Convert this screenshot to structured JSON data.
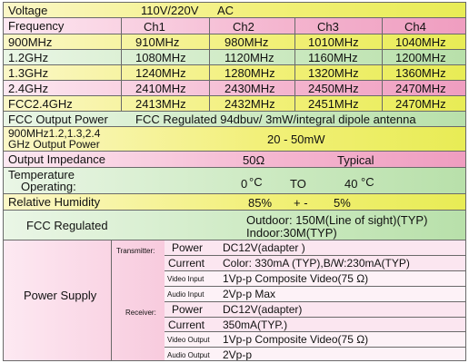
{
  "voltage": {
    "label": "Voltage",
    "value": "110V/220V",
    "value2": "AC"
  },
  "frequency_header": {
    "label": "Frequency",
    "ch": [
      "Ch1",
      "Ch2",
      "Ch3",
      "Ch4"
    ]
  },
  "freq_rows": [
    {
      "label": "900MHz",
      "vals": [
        "910MHz",
        "980MHz",
        "1010MHz",
        "1040MHz"
      ]
    },
    {
      "label": "1.2GHz",
      "vals": [
        "1080MHz",
        "1120MHz",
        "1160MHz",
        "1200MHz"
      ]
    },
    {
      "label": "1.3GHz",
      "vals": [
        "1240MHz",
        "1280MHz",
        "1320MHz",
        "1360MHz"
      ]
    },
    {
      "label": "2.4GHz",
      "vals": [
        "2410MHz",
        "2430MHz",
        "2450MHz",
        "2470MHz"
      ]
    },
    {
      "label": "FCC2.4GHz",
      "vals": [
        "2413MHz",
        "2432MHz",
        "2451MHz",
        "2470MHz"
      ]
    }
  ],
  "fcc_output": {
    "label": "FCC Output Power",
    "value": "FCC Regulated 94dbuv/ 3mW/integral dipole antenna"
  },
  "output_power": {
    "label1": "900MHz1.2,1.3,2.4",
    "label2": "GHz Output Power",
    "value": "20 - 50mW"
  },
  "impedance": {
    "label": "Output Impedance",
    "value": "50Ω",
    "value2": "Typical"
  },
  "temperature": {
    "label1": "Temperature",
    "label2": "Operating:",
    "low": "0",
    "to": "TO",
    "high": "40",
    "unit": "°C"
  },
  "humidity": {
    "label": "Relative Humidity",
    "value": "85%",
    "sep": "+ -",
    "tol": "5%"
  },
  "fcc_regulated": {
    "label": "FCC Regulated",
    "line1": "Outdoor: 150M(Line of sight)(TYP)",
    "line2": "Indoor:30M(TYP)"
  },
  "power_supply": {
    "label": "Power Supply",
    "transmitter_label": "Transmitter:",
    "receiver_label": "Receiver:",
    "transmitter": [
      {
        "k": "Power",
        "v": "DC12V(adapter )",
        "small": false
      },
      {
        "k": "Current",
        "v": "Color: 330mA (TYP),B/W:230mA(TYP)",
        "small": false
      },
      {
        "k": "Video Input",
        "v": "1Vp-p Composite  Video(75 Ω)",
        "small": true
      },
      {
        "k": "Audio Input",
        "v": "2Vp-p Max",
        "small": true
      }
    ],
    "receiver": [
      {
        "k": "Power",
        "v": "DC12V(adapter)",
        "small": false
      },
      {
        "k": "Current",
        "v": "350mA(TYP.)",
        "small": false
      },
      {
        "k": "Video Output",
        "v": "1Vp-p Composite Video(75 Ω)",
        "small": true
      },
      {
        "k": "Audio Output",
        "v": "2Vp-p",
        "small": true
      }
    ]
  }
}
